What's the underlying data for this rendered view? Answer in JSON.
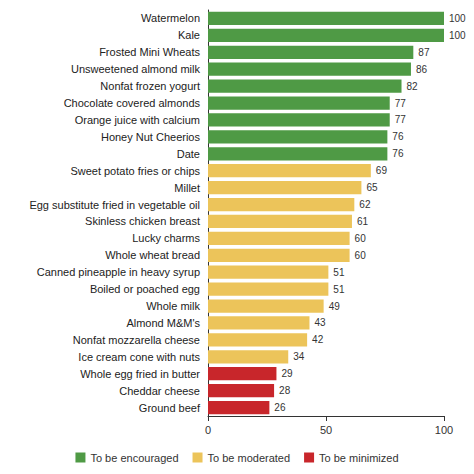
{
  "chart_data": {
    "type": "bar",
    "orientation": "horizontal",
    "stacked": true,
    "data_labels": true,
    "grid": false,
    "legend": "bottom",
    "categories": [
      "Watermelon",
      "Kale",
      "Frosted Mini Wheats",
      "Unsweetened almond milk",
      "Nonfat frozen yogurt",
      "Chocolate covered almonds",
      "Orange juice with calcium",
      "Honey Nut Cheerios",
      "Date",
      "Sweet potato fries or chips",
      "Millet",
      "Egg substitute fried in vegetable oil",
      "Skinless chicken breast",
      "Lucky charms",
      "Whole wheat bread",
      "Canned pineapple in heavy syrup",
      "Boiled or poached egg",
      "Whole milk",
      "Almond M&M's",
      "Nonfat mozzarella cheese",
      "Ice cream cone with nuts",
      "Whole egg fried in butter",
      "Cheddar cheese",
      "Ground beef"
    ],
    "series": [
      {
        "name": "To be encouraged",
        "color": "#4f9a45",
        "values": [
          100,
          100,
          87,
          86,
          82,
          77,
          77,
          76,
          76,
          null,
          null,
          null,
          null,
          null,
          null,
          null,
          null,
          null,
          null,
          null,
          null,
          null,
          null,
          null
        ]
      },
      {
        "name": "To be moderated",
        "color": "#ecc45a",
        "values": [
          null,
          null,
          null,
          null,
          null,
          null,
          null,
          null,
          null,
          69,
          65,
          62,
          61,
          60,
          60,
          51,
          51,
          49,
          43,
          42,
          34,
          null,
          null,
          null
        ]
      },
      {
        "name": "To be minimized",
        "color": "#c8262b",
        "values": [
          null,
          null,
          null,
          null,
          null,
          null,
          null,
          null,
          null,
          null,
          null,
          null,
          null,
          null,
          null,
          null,
          null,
          null,
          null,
          null,
          null,
          29,
          28,
          26
        ]
      }
    ],
    "xlim": [
      0,
      100
    ],
    "xticks": [
      0,
      50,
      100
    ]
  }
}
